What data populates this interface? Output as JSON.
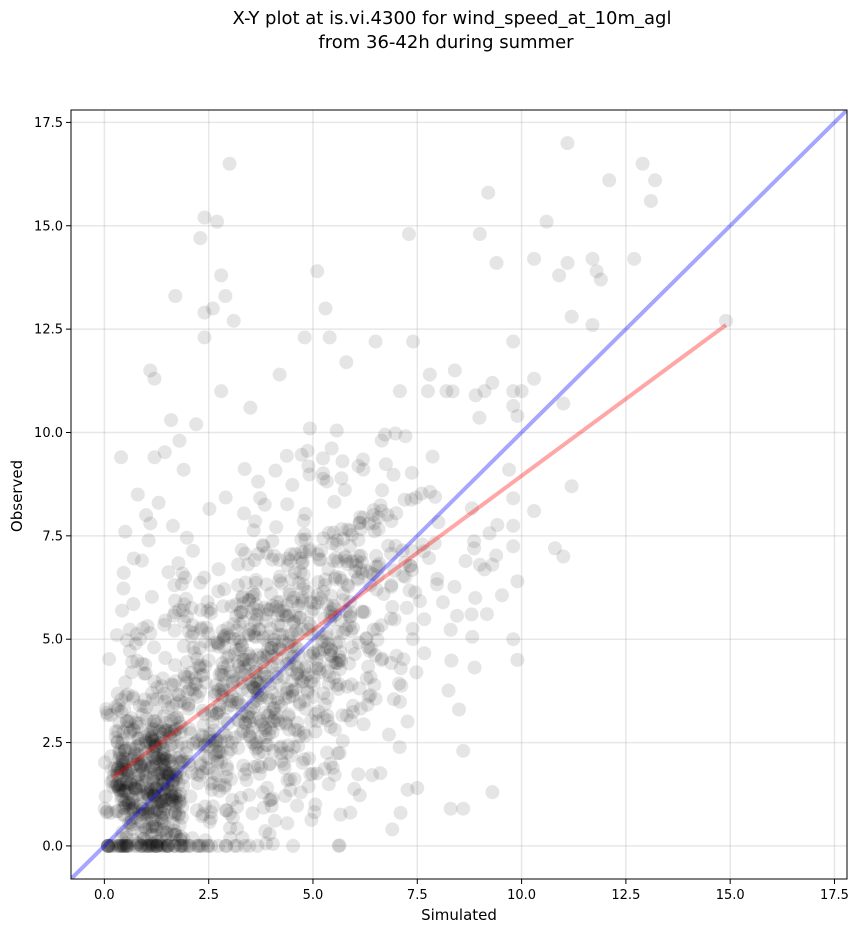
{
  "chart_data": {
    "type": "scatter",
    "title": "X-Y plot at is.vi.4300 for wind_speed_at_10m_agl",
    "subtitle": "from 36-42h during summer",
    "xlabel": "Simulated",
    "ylabel": "Observed",
    "xlim": [
      -0.8,
      17.8
    ],
    "ylim": [
      -0.8,
      17.8
    ],
    "xticks": [
      "0.0",
      "2.5",
      "5.0",
      "7.5",
      "10.0",
      "12.5",
      "15.0",
      "17.5"
    ],
    "yticks": [
      "0.0",
      "2.5",
      "5.0",
      "7.5",
      "10.0",
      "12.5",
      "15.0",
      "17.5"
    ],
    "grid": true,
    "point_color": "#000000",
    "point_opacity": 0.1,
    "n_points": 1500,
    "reference_line": {
      "label": "1:1",
      "color": "#0000ff",
      "x": [
        -0.8,
        17.8
      ],
      "y": [
        -0.8,
        17.8
      ]
    },
    "fit_line": {
      "color": "#ff0000",
      "x": [
        0.2,
        14.9
      ],
      "y": [
        1.65,
        12.6
      ]
    },
    "highlighted_points": [
      {
        "x": 0.3,
        "y": 5.1
      },
      {
        "x": 0.4,
        "y": 9.4
      },
      {
        "x": 0.5,
        "y": 7.6
      },
      {
        "x": 0.8,
        "y": 8.5
      },
      {
        "x": 0.9,
        "y": 6.9
      },
      {
        "x": 1.0,
        "y": 8.0
      },
      {
        "x": 1.1,
        "y": 7.8
      },
      {
        "x": 1.2,
        "y": 11.3
      },
      {
        "x": 1.1,
        "y": 11.5
      },
      {
        "x": 1.2,
        "y": 9.4
      },
      {
        "x": 1.3,
        "y": 8.3
      },
      {
        "x": 1.6,
        "y": 10.3
      },
      {
        "x": 1.7,
        "y": 13.3
      },
      {
        "x": 1.8,
        "y": 9.8
      },
      {
        "x": 1.9,
        "y": 9.1
      },
      {
        "x": 2.2,
        "y": 10.2
      },
      {
        "x": 2.3,
        "y": 14.7
      },
      {
        "x": 2.4,
        "y": 15.2
      },
      {
        "x": 2.4,
        "y": 12.9
      },
      {
        "x": 2.4,
        "y": 12.3
      },
      {
        "x": 2.6,
        "y": 13.0
      },
      {
        "x": 2.7,
        "y": 15.1
      },
      {
        "x": 2.8,
        "y": 13.8
      },
      {
        "x": 2.8,
        "y": 11.0
      },
      {
        "x": 2.9,
        "y": 13.3
      },
      {
        "x": 3.0,
        "y": 16.5
      },
      {
        "x": 3.1,
        "y": 12.7
      },
      {
        "x": 3.5,
        "y": 10.6
      },
      {
        "x": 4.2,
        "y": 11.4
      },
      {
        "x": 4.8,
        "y": 12.3
      },
      {
        "x": 5.1,
        "y": 13.9
      },
      {
        "x": 5.3,
        "y": 13.0
      },
      {
        "x": 5.4,
        "y": 12.3
      },
      {
        "x": 5.8,
        "y": 11.7
      },
      {
        "x": 6.5,
        "y": 12.2
      },
      {
        "x": 7.3,
        "y": 14.8
      },
      {
        "x": 7.4,
        "y": 12.2
      },
      {
        "x": 7.8,
        "y": 11.4
      },
      {
        "x": 8.4,
        "y": 11.5
      },
      {
        "x": 8.9,
        "y": 10.9
      },
      {
        "x": 9.0,
        "y": 14.8
      },
      {
        "x": 9.2,
        "y": 15.8
      },
      {
        "x": 9.4,
        "y": 14.1
      },
      {
        "x": 9.3,
        "y": 11.2
      },
      {
        "x": 9.8,
        "y": 12.2
      },
      {
        "x": 9.9,
        "y": 10.4
      },
      {
        "x": 10.0,
        "y": 11.0
      },
      {
        "x": 10.3,
        "y": 14.2
      },
      {
        "x": 10.6,
        "y": 15.1
      },
      {
        "x": 10.9,
        "y": 13.8
      },
      {
        "x": 11.1,
        "y": 14.1
      },
      {
        "x": 11.1,
        "y": 17.0
      },
      {
        "x": 11.2,
        "y": 12.8
      },
      {
        "x": 11.2,
        "y": 8.7
      },
      {
        "x": 11.0,
        "y": 10.7
      },
      {
        "x": 11.7,
        "y": 14.2
      },
      {
        "x": 11.8,
        "y": 13.9
      },
      {
        "x": 11.9,
        "y": 13.7
      },
      {
        "x": 11.7,
        "y": 12.6
      },
      {
        "x": 12.1,
        "y": 16.1
      },
      {
        "x": 12.7,
        "y": 14.2
      },
      {
        "x": 12.9,
        "y": 16.5
      },
      {
        "x": 13.1,
        "y": 15.6
      },
      {
        "x": 13.2,
        "y": 16.1
      },
      {
        "x": 14.9,
        "y": 12.7
      },
      {
        "x": 10.8,
        "y": 7.2
      },
      {
        "x": 11.0,
        "y": 7.0
      },
      {
        "x": 9.9,
        "y": 6.4
      },
      {
        "x": 9.8,
        "y": 5.0
      },
      {
        "x": 9.9,
        "y": 4.5
      },
      {
        "x": 9.3,
        "y": 1.3
      },
      {
        "x": 8.6,
        "y": 0.9
      },
      {
        "x": 8.3,
        "y": 0.9
      },
      {
        "x": 8.5,
        "y": 3.3
      },
      {
        "x": 8.6,
        "y": 2.3
      },
      {
        "x": 7.5,
        "y": 1.4
      },
      {
        "x": 7.1,
        "y": 0.8
      },
      {
        "x": 6.9,
        "y": 0.4
      },
      {
        "x": 10.3,
        "y": 8.1
      },
      {
        "x": 10.3,
        "y": 11.3
      },
      {
        "x": 9.7,
        "y": 9.1
      },
      {
        "x": 9.3,
        "y": 6.8
      },
      {
        "x": 9.0,
        "y": 6.8
      },
      {
        "x": 8.8,
        "y": 5.6
      }
    ]
  }
}
